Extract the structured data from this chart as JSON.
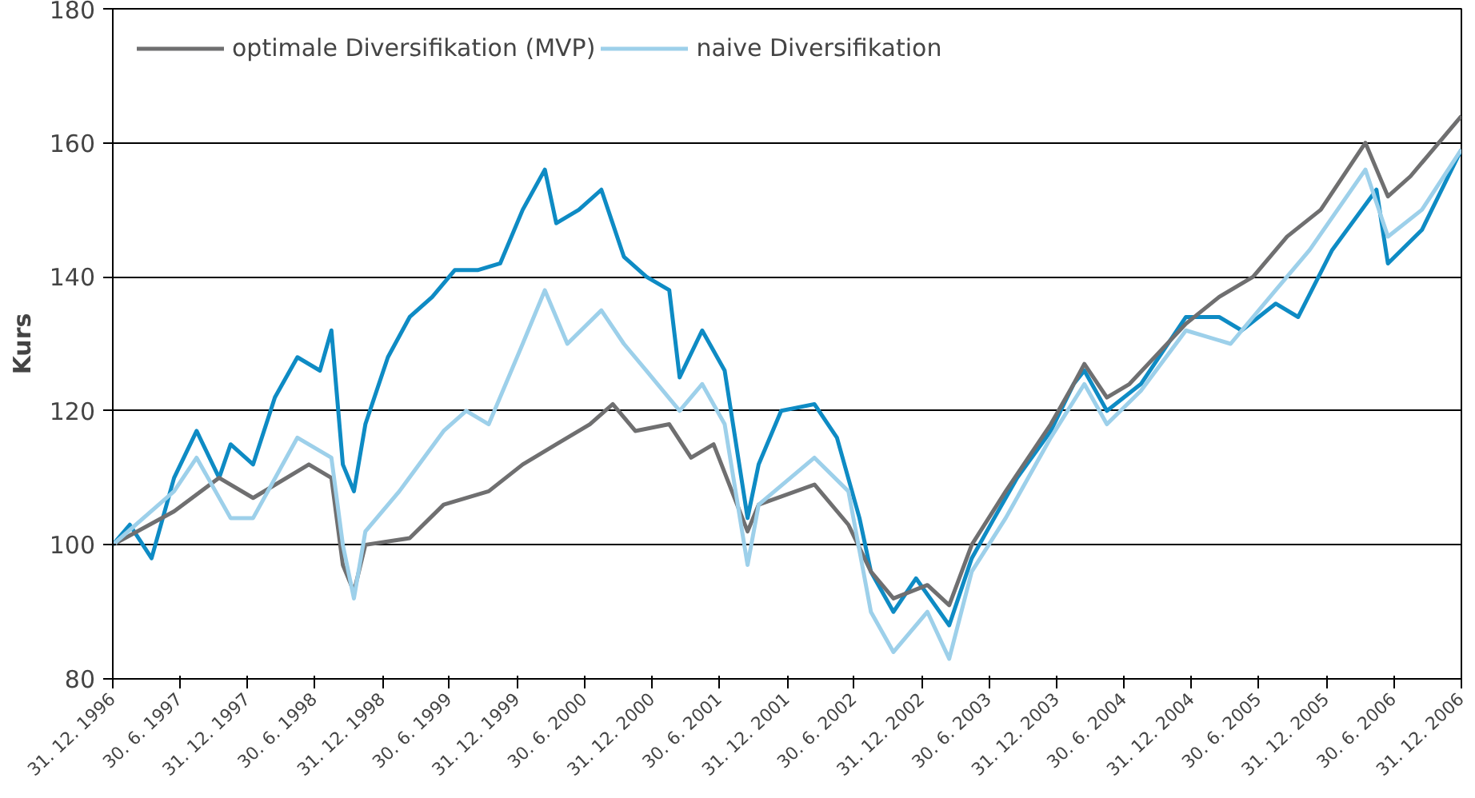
{
  "chart_data": {
    "type": "line",
    "ylabel": "Kurs",
    "ylim": [
      80,
      180
    ],
    "yticks": [
      80,
      100,
      120,
      140,
      160,
      180
    ],
    "grid": "y",
    "legend": "top left",
    "xlim": [
      "1996-12-31",
      "2006-12-31"
    ],
    "xticks": [
      {
        "value": "1996-12-31",
        "label": "31. 12. 1996"
      },
      {
        "value": "1997-06-30",
        "label": "30. 6. 1997"
      },
      {
        "value": "1997-12-31",
        "label": "31. 12. 1997"
      },
      {
        "value": "1998-06-30",
        "label": "30. 6. 1998"
      },
      {
        "value": "1998-12-31",
        "label": "31. 12. 1998"
      },
      {
        "value": "1999-06-30",
        "label": "30. 6. 1999"
      },
      {
        "value": "1999-12-31",
        "label": "31. 12. 1999"
      },
      {
        "value": "2000-06-30",
        "label": "30. 6. 2000"
      },
      {
        "value": "2000-12-31",
        "label": "31. 12. 2000"
      },
      {
        "value": "2001-06-30",
        "label": "30. 6. 2001"
      },
      {
        "value": "2001-12-31",
        "label": "31. 12. 2001"
      },
      {
        "value": "2002-06-30",
        "label": "30. 6. 2002"
      },
      {
        "value": "2002-12-31",
        "label": "31. 12. 2002"
      },
      {
        "value": "2003-06-30",
        "label": "30. 6. 2003"
      },
      {
        "value": "2003-12-31",
        "label": "31. 12. 2003"
      },
      {
        "value": "2004-06-30",
        "label": "30. 6. 2004"
      },
      {
        "value": "2004-12-31",
        "label": "31. 12. 2004"
      },
      {
        "value": "2005-06-30",
        "label": "30. 6. 2005"
      },
      {
        "value": "2005-12-31",
        "label": "31. 12. 2005"
      },
      {
        "value": "2006-06-30",
        "label": "30. 6. 2006"
      },
      {
        "value": "2006-12-31",
        "label": "31. 12. 2006"
      }
    ],
    "series": [
      {
        "color": "#0e8bc4",
        "x": [
          "1996-12-31",
          "1997-02",
          "1997-04",
          "1997-06",
          "1997-08",
          "1997-10",
          "1997-11",
          "1998-01",
          "1998-03",
          "1998-05",
          "1998-07",
          "1998-08",
          "1998-09",
          "1998-10",
          "1998-11",
          "1999-01",
          "1999-03",
          "1999-05",
          "1999-07",
          "1999-09",
          "1999-11",
          "2000-01",
          "2000-03",
          "2000-04",
          "2000-06",
          "2000-08",
          "2000-10",
          "2000-12",
          "2001-02",
          "2001-03",
          "2001-05",
          "2001-07",
          "2001-09",
          "2001-10",
          "2001-12",
          "2002-03",
          "2002-05",
          "2002-07",
          "2002-08",
          "2002-10",
          "2002-12",
          "2003-03",
          "2003-05",
          "2003-07",
          "2003-09",
          "2003-12",
          "2004-02",
          "2004-03",
          "2004-05",
          "2004-08",
          "2004-12",
          "2005-03",
          "2005-05",
          "2005-08",
          "2005-10",
          "2006-01",
          "2006-05",
          "2006-06",
          "2006-09",
          "2006-12-31"
        ],
        "values": [
          100,
          103,
          98,
          110,
          117,
          110,
          115,
          112,
          122,
          128,
          126,
          132,
          112,
          108,
          118,
          128,
          134,
          137,
          141,
          141,
          142,
          150,
          156,
          148,
          150,
          153,
          143,
          140,
          138,
          125,
          132,
          126,
          104,
          112,
          120,
          121,
          116,
          104,
          96,
          90,
          95,
          88,
          98,
          104,
          110,
          117,
          124,
          126,
          120,
          124,
          134,
          134,
          132,
          136,
          134,
          144,
          153,
          142,
          147,
          159
        ]
      },
      {
        "name": "optimale Diversifikation (MVP)",
        "color": "#6f6f70",
        "x": [
          "1996-12-31",
          "1997-06",
          "1997-10",
          "1998-01",
          "1998-06",
          "1998-08",
          "1998-09",
          "1998-10",
          "1998-11",
          "1999-03",
          "1999-06",
          "1999-10",
          "2000-01",
          "2000-04",
          "2000-07",
          "2000-09",
          "2000-11",
          "2001-02",
          "2001-04",
          "2001-06",
          "2001-09",
          "2001-10",
          "2002-03",
          "2002-06",
          "2002-08",
          "2002-10",
          "2003-01",
          "2003-03",
          "2003-05",
          "2003-08",
          "2003-12",
          "2004-02",
          "2004-03",
          "2004-05",
          "2004-07",
          "2004-12",
          "2005-03",
          "2005-06",
          "2005-09",
          "2005-12",
          "2006-04",
          "2006-06",
          "2006-08",
          "2006-12-31"
        ],
        "values": [
          100,
          105,
          110,
          107,
          112,
          110,
          97,
          93,
          100,
          101,
          106,
          108,
          112,
          115,
          118,
          121,
          117,
          118,
          113,
          115,
          102,
          106,
          109,
          103,
          96,
          92,
          94,
          91,
          100,
          108,
          118,
          124,
          127,
          122,
          124,
          133,
          137,
          140,
          146,
          150,
          160,
          152,
          155,
          164
        ]
      },
      {
        "name": "naive Diversifikation",
        "color": "#9dd0ea",
        "x": [
          "1996-12-31",
          "1997-06",
          "1997-08",
          "1997-11",
          "1998-01",
          "1998-05",
          "1998-08",
          "1998-09",
          "1998-10",
          "1998-11",
          "1999-02",
          "1999-06",
          "1999-08",
          "1999-10",
          "2000-01",
          "2000-03",
          "2000-05",
          "2000-08",
          "2000-10",
          "2000-12",
          "2001-03",
          "2001-05",
          "2001-07",
          "2001-09",
          "2001-10",
          "2002-03",
          "2002-06",
          "2002-08",
          "2002-10",
          "2003-01",
          "2003-03",
          "2003-05",
          "2003-08",
          "2003-12",
          "2004-03",
          "2004-05",
          "2004-08",
          "2004-12",
          "2005-04",
          "2005-08",
          "2005-11",
          "2006-04",
          "2006-06",
          "2006-09",
          "2006-12-31"
        ],
        "values": [
          100,
          108,
          113,
          104,
          104,
          116,
          113,
          100,
          92,
          102,
          108,
          117,
          120,
          118,
          130,
          138,
          130,
          135,
          130,
          126,
          120,
          124,
          118,
          97,
          106,
          113,
          108,
          90,
          84,
          90,
          83,
          96,
          104,
          116,
          124,
          118,
          123,
          132,
          130,
          138,
          144,
          156,
          146,
          150,
          159
        ]
      }
    ]
  }
}
